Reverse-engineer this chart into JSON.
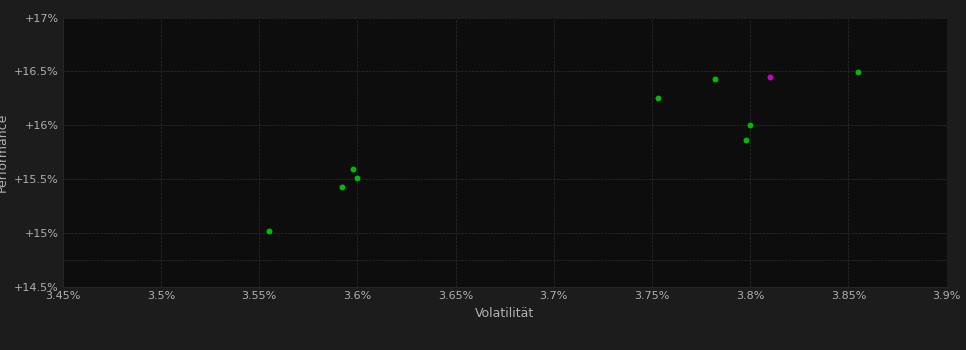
{
  "background_color": "#1c1c1c",
  "plot_bg_color": "#0d0d0d",
  "grid_color": "#2e2e2e",
  "text_color": "#b0b0b0",
  "xlabel": "Volatilität",
  "ylabel": "Performance",
  "xlim": [
    0.0345,
    0.039
  ],
  "ylim": [
    0.145,
    0.17
  ],
  "xticks": [
    0.0345,
    0.035,
    0.0355,
    0.036,
    0.0365,
    0.037,
    0.0375,
    0.038,
    0.0385,
    0.039
  ],
  "xtick_labels": [
    "3.45%",
    "3.5%",
    "3.55%",
    "3.6%",
    "3.65%",
    "3.7%",
    "3.75%",
    "3.8%",
    "3.85%",
    "3.9%"
  ],
  "yticks": [
    0.145,
    0.1475,
    0.15,
    0.155,
    0.16,
    0.165,
    0.17
  ],
  "ytick_labels": [
    "+14.5%",
    "",
    "+15%",
    "+15.5%",
    "+16%",
    "+16.5%",
    "+17%"
  ],
  "green_x": [
    0.03555,
    0.03598,
    0.036,
    0.03592,
    0.03753,
    0.03782,
    0.038,
    0.03798,
    0.03855
  ],
  "green_y": [
    0.1502,
    0.1559,
    0.1551,
    0.1543,
    0.1625,
    0.1643,
    0.16,
    0.1586,
    0.1649
  ],
  "magenta_x": [
    0.0381
  ],
  "magenta_y": [
    0.1645
  ],
  "marker_size": 18,
  "font_size_ticks": 8,
  "font_size_label": 9
}
